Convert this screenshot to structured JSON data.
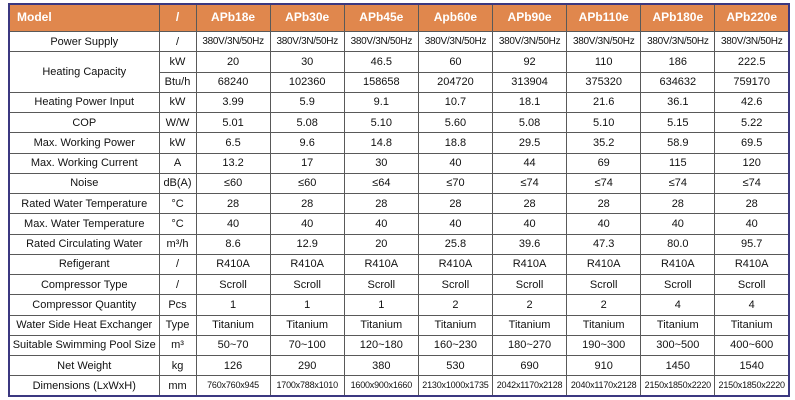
{
  "colors": {
    "header_bg": "#E0874D",
    "header_text": "#FFFFFF",
    "outer_border": "#3B3880",
    "grid": "#595959"
  },
  "columns": [
    "Model",
    "/",
    "APb18e",
    "APb30e",
    "APb45e",
    "Apb60e",
    "APb90e",
    "APb110e",
    "APb180e",
    "APb220e"
  ],
  "rows": [
    {
      "label": "Power Supply",
      "label_rowspan": 1,
      "unit": "/",
      "style": "ps",
      "values": [
        "380V/3N/50Hz",
        "380V/3N/50Hz",
        "380V/3N/50Hz",
        "380V/3N/50Hz",
        "380V/3N/50Hz",
        "380V/3N/50Hz",
        "380V/3N/50Hz",
        "380V/3N/50Hz"
      ]
    },
    {
      "label": "Heating Capacity",
      "label_rowspan": 2,
      "unit": "kW",
      "values": [
        "20",
        "30",
        "46.5",
        "60",
        "92",
        "110",
        "186",
        "222.5"
      ]
    },
    {
      "label": null,
      "unit": "Btu/h",
      "values": [
        "68240",
        "102360",
        "158658",
        "204720",
        "313904",
        "375320",
        "634632",
        "759170"
      ]
    },
    {
      "label": "Heating Power Input",
      "label_rowspan": 1,
      "unit": "kW",
      "values": [
        "3.99",
        "5.9",
        "9.1",
        "10.7",
        "18.1",
        "21.6",
        "36.1",
        "42.6"
      ]
    },
    {
      "label": "COP",
      "label_rowspan": 1,
      "unit": "W/W",
      "values": [
        "5.01",
        "5.08",
        "5.10",
        "5.60",
        "5.08",
        "5.10",
        "5.15",
        "5.22"
      ]
    },
    {
      "label": "Max. Working Power",
      "label_rowspan": 1,
      "unit": "kW",
      "values": [
        "6.5",
        "9.6",
        "14.8",
        "18.8",
        "29.5",
        "35.2",
        "58.9",
        "69.5"
      ]
    },
    {
      "label": "Max. Working Current",
      "label_rowspan": 1,
      "unit": "A",
      "values": [
        "13.2",
        "17",
        "30",
        "40",
        "44",
        "69",
        "115",
        "120"
      ]
    },
    {
      "label": "Noise",
      "label_rowspan": 1,
      "unit": "dB(A)",
      "values": [
        "≤60",
        "≤60",
        "≤64",
        "≤70",
        "≤74",
        "≤74",
        "≤74",
        "≤74"
      ]
    },
    {
      "label": "Rated Water Temperature",
      "label_rowspan": 1,
      "unit": "°C",
      "values": [
        "28",
        "28",
        "28",
        "28",
        "28",
        "28",
        "28",
        "28"
      ]
    },
    {
      "label": "Max. Water Temperature",
      "label_rowspan": 1,
      "unit": "°C",
      "values": [
        "40",
        "40",
        "40",
        "40",
        "40",
        "40",
        "40",
        "40"
      ]
    },
    {
      "label": "Rated Circulating Water",
      "label_rowspan": 1,
      "unit": "m³/h",
      "values": [
        "8.6",
        "12.9",
        "20",
        "25.8",
        "39.6",
        "47.3",
        "80.0",
        "95.7"
      ]
    },
    {
      "label": "Refigerant",
      "label_rowspan": 1,
      "unit": "/",
      "values": [
        "R410A",
        "R410A",
        "R410A",
        "R410A",
        "R410A",
        "R410A",
        "R410A",
        "R410A"
      ]
    },
    {
      "label": "Compressor Type",
      "label_rowspan": 1,
      "unit": "/",
      "values": [
        "Scroll",
        "Scroll",
        "Scroll",
        "Scroll",
        "Scroll",
        "Scroll",
        "Scroll",
        "Scroll"
      ]
    },
    {
      "label": "Compressor Quantity",
      "label_rowspan": 1,
      "unit": "Pcs",
      "values": [
        "1",
        "1",
        "1",
        "2",
        "2",
        "2",
        "4",
        "4"
      ]
    },
    {
      "label": "Water Side Heat Exchanger",
      "label_rowspan": 1,
      "unit": "Type",
      "values": [
        "Titanium",
        "Titanium",
        "Titanium",
        "Titanium",
        "Titanium",
        "Titanium",
        "Titanium",
        "Titanium"
      ]
    },
    {
      "label": "Suitable Swimming Pool Size",
      "label_rowspan": 1,
      "unit": "m³",
      "values": [
        "50~70",
        "70~100",
        "120~180",
        "160~230",
        "180~270",
        "190~300",
        "300~500",
        "400~600"
      ]
    },
    {
      "label": "Net Weight",
      "label_rowspan": 1,
      "unit": "kg",
      "values": [
        "126",
        "290",
        "380",
        "530",
        "690",
        "910",
        "1450",
        "1540"
      ]
    },
    {
      "label": "Dimensions (LxWxH)",
      "label_rowspan": 1,
      "unit": "mm",
      "style": "small",
      "values": [
        "760x760x945",
        "1700x788x1010",
        "1600x900x1660",
        "2130x1000x1735",
        "2042x1170x2128",
        "2040x1170x2128",
        "2150x1850x2220",
        "2150x1850x2220"
      ]
    }
  ]
}
